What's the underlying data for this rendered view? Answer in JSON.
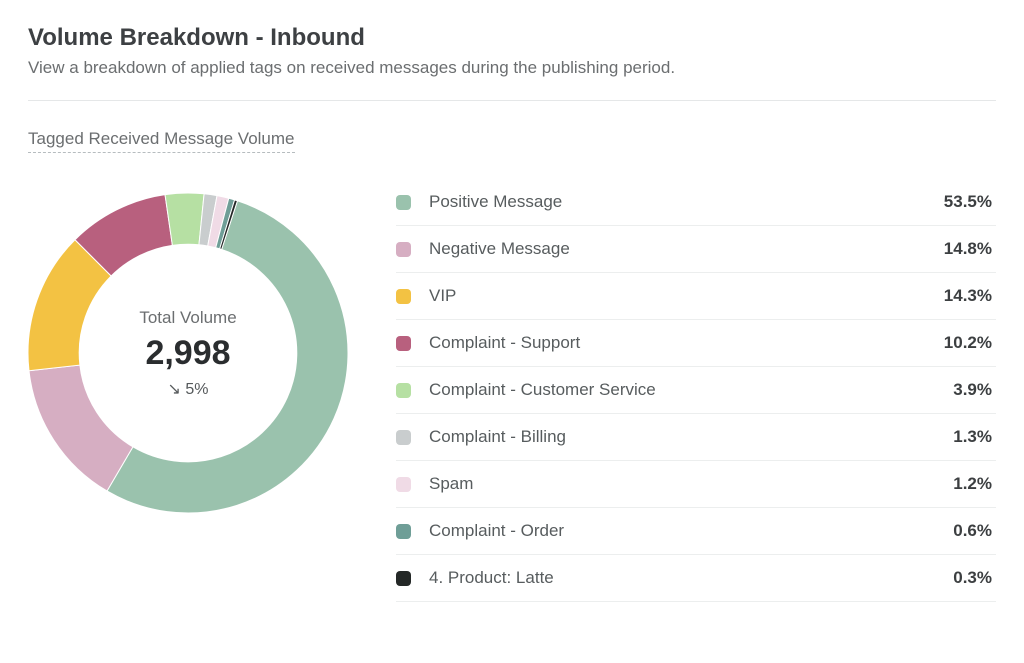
{
  "header": {
    "title": "Volume Breakdown - Inbound",
    "subtitle": "View a breakdown of applied tags on received messages during the publishing period."
  },
  "section": {
    "label": "Tagged Received Message Volume"
  },
  "chart": {
    "type": "donut",
    "center": {
      "title": "Total Volume",
      "value": "2,998",
      "delta_icon": "↘",
      "delta_text": "5%"
    },
    "size": 320,
    "inner_ratio": 0.68,
    "rotation_deg": 18,
    "background_color": "#ffffff",
    "colors": {
      "title_text": "#3d4043",
      "body_text": "#6b6e70",
      "divider": "#e5e7e8",
      "legend_border": "#eceeee"
    },
    "slices": [
      {
        "label": "Positive Message",
        "pct": 53.5,
        "color": "#9ac2ad"
      },
      {
        "label": "Negative Message",
        "pct": 14.8,
        "color": "#d6aec2"
      },
      {
        "label": "VIP",
        "pct": 14.3,
        "color": "#f3c243"
      },
      {
        "label": "Complaint - Support",
        "pct": 10.2,
        "color": "#b8607e"
      },
      {
        "label": "Complaint - Customer Service",
        "pct": 3.9,
        "color": "#b6e0a3"
      },
      {
        "label": "Complaint - Billing",
        "pct": 1.3,
        "color": "#c9cdce"
      },
      {
        "label": "Spam",
        "pct": 1.2,
        "color": "#f0dbe6"
      },
      {
        "label": "Complaint - Order",
        "pct": 0.6,
        "color": "#6f9e97"
      },
      {
        "label": "4. Product: Latte",
        "pct": 0.3,
        "color": "#242827"
      }
    ]
  }
}
